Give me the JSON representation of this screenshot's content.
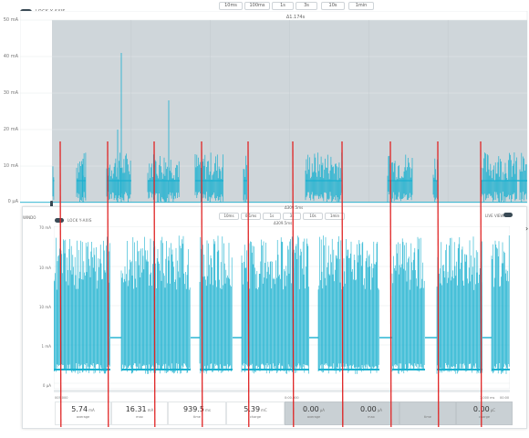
{
  "top_toolbar": {
    "lock_label": "LOCK Y-AXIS",
    "time_buttons": [
      "10ms",
      "100ms",
      "1s",
      "3s",
      "10s",
      "1min"
    ]
  },
  "top_chart": {
    "selection_label": "Δ1.174s",
    "y_ticks": [
      "50 mA",
      "40 mA",
      "30 mA",
      "20 mA",
      "10 mA",
      "0 µA"
    ],
    "ylim": [
      0,
      50
    ],
    "unit": "mA"
  },
  "sub_window": {
    "window_label": "WINDO",
    "lock_label": "LOCK Y-AXIS",
    "time_buttons": [
      "10ms",
      "0.1ms",
      "1s",
      "3s",
      "10s",
      "1min"
    ],
    "top_marker": "Δ309.5ms",
    "mid_marker": "Δ309.5ms",
    "bottom_marker": "Δ309.5ms",
    "y_ticks": [
      "70 mA",
      "10 mA",
      "10 mA",
      "1 mA",
      "0 µA"
    ],
    "live_view_label": "LIVE VIEW",
    "bottom_axis_left": "005.000",
    "bottom_axis_mid": "0:00.000",
    "bottom_axis_right": "1.000 ms",
    "bottom_axis_right2": "00:00"
  },
  "stats": [
    {
      "value": "5.74",
      "unit": "mA",
      "label": "average"
    },
    {
      "value": "16.31",
      "unit": "mA",
      "label": "max"
    },
    {
      "value": "939.5",
      "unit": "ms",
      "label": "time"
    },
    {
      "value": "5.39",
      "unit": "mC",
      "label": "charge"
    },
    {
      "value": "0.00",
      "unit": "µA",
      "label": "average"
    },
    {
      "value": "0.00",
      "unit": "µA",
      "label": "max"
    },
    {
      "value": "",
      "unit": "",
      "label": "time"
    },
    {
      "value": "0.00",
      "unit": "µC",
      "label": "charge"
    }
  ],
  "colors": {
    "trace": "#1ab0cf",
    "selection": "#cfd6da",
    "marker": "#e02424",
    "toggle": "#3a4a55"
  },
  "chart_data": {
    "type": "line",
    "title": "",
    "xlabel": "",
    "ylabel": "",
    "ylim": [
      0,
      50
    ],
    "y_ticks": [
      "50 mA",
      "40 mA",
      "30 mA",
      "20 mA",
      "10 mA",
      "0 µA"
    ],
    "series": [
      {
        "values": [
          0,
          0,
          12,
          0,
          0,
          13,
          0,
          0,
          12,
          0,
          0,
          12,
          0,
          0,
          12,
          0,
          0,
          0,
          0,
          12,
          12,
          0,
          0,
          0,
          12,
          0,
          0,
          0,
          12,
          0,
          0,
          12,
          6
        ]
      }
    ],
    "peaks_mA": [
      41,
      28,
      20,
      12
    ]
  }
}
